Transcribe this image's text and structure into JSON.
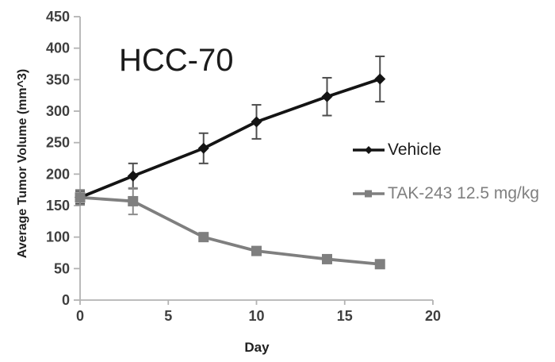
{
  "chart_data": {
    "type": "line",
    "title": "HCC-70",
    "xlabel": "Day",
    "ylabel": "Average Tumor Volume (mm^3)",
    "xlim": [
      0,
      20
    ],
    "ylim": [
      0,
      450
    ],
    "xticks": [
      0,
      5,
      10,
      15,
      20
    ],
    "yticks": [
      450,
      400,
      350,
      300,
      250,
      200,
      150,
      100,
      50,
      0
    ],
    "grid": false,
    "legend_position": "right-middle",
    "x": [
      0,
      3,
      7,
      10,
      14,
      17
    ],
    "series": [
      {
        "name": "Vehicle",
        "marker": "diamond",
        "color": "#141414",
        "error_color": "#4d4d4d",
        "values": [
          163,
          197,
          241,
          283,
          323,
          351
        ],
        "errors": [
          10,
          20,
          24,
          27,
          30,
          36
        ]
      },
      {
        "name": "TAK-243 12.5 mg/kg",
        "marker": "square",
        "color": "#7f7f7f",
        "error_color": "#8c8c8c",
        "values": [
          163,
          157,
          100,
          78,
          65,
          57
        ],
        "errors": [
          12,
          21,
          0,
          0,
          0,
          0
        ]
      }
    ]
  },
  "styles": {
    "axis_color": "#b3b3b3",
    "tick_label_color": "#3f3f3f",
    "background": "#ffffff"
  }
}
